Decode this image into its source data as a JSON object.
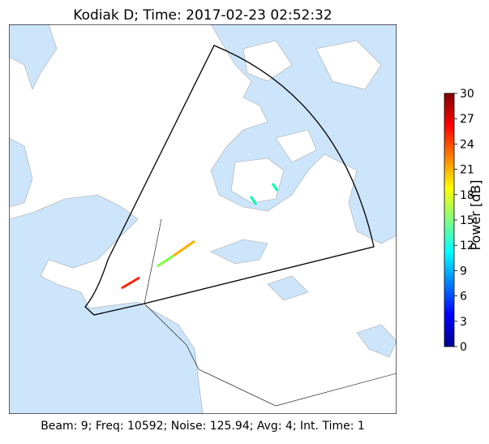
{
  "map": {
    "title": "Kodiak D; Time: 2017-02-23 02:52:32",
    "footer": "Beam: 9; Freq: 10592; Noise: 125.94; Avg: 4; Int. Time: 1",
    "colorbar": {
      "label": "Power [dB]",
      "lim": [
        0,
        30
      ],
      "ticks": [
        0,
        3,
        6,
        9,
        12,
        15,
        18,
        21,
        24,
        27,
        30
      ],
      "colormap": "jet"
    }
  }
}
